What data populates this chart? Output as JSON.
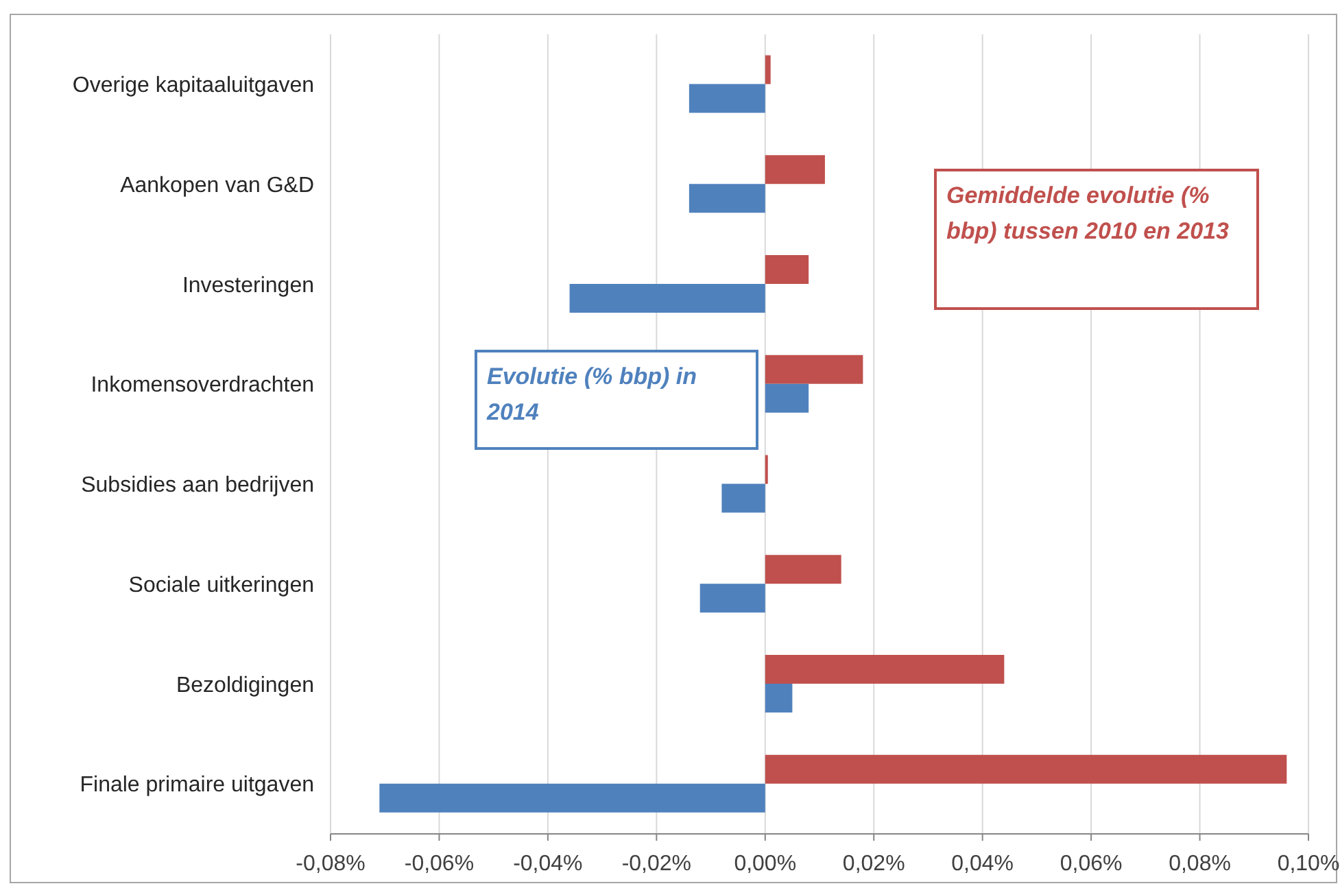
{
  "chart_data": {
    "type": "bar",
    "orientation": "horizontal",
    "categories": [
      "Overige kapitaaluitgaven",
      "Aankopen van G&D",
      "Investeringen",
      "Inkomensoverdrachten",
      "Subsidies aan bedrijven",
      "Sociale uitkeringen",
      "Bezoldigingen",
      "Finale primaire uitgaven"
    ],
    "series": [
      {
        "name": "Gemiddelde evolutie (% bbp) tussen 2010 en 2013",
        "color": "#c0504d",
        "values": [
          0.001,
          0.011,
          0.008,
          0.018,
          0.0005,
          0.014,
          0.044,
          0.096
        ]
      },
      {
        "name": "Evolutie (% bbp) in 2014",
        "color": "#4f81bd",
        "values": [
          -0.014,
          -0.014,
          -0.036,
          0.008,
          -0.008,
          -0.012,
          0.005,
          -0.071
        ]
      }
    ],
    "xlim": [
      -0.08,
      0.1
    ],
    "xticks": [
      {
        "value": -0.08,
        "label": "-0,08%"
      },
      {
        "value": -0.06,
        "label": "-0,06%"
      },
      {
        "value": -0.04,
        "label": "-0,04%"
      },
      {
        "value": -0.02,
        "label": "-0,02%"
      },
      {
        "value": 0,
        "label": "0,00%"
      },
      {
        "value": 0.02,
        "label": "0,02%"
      },
      {
        "value": 0.04,
        "label": "0,04%"
      },
      {
        "value": 0.06,
        "label": "0,06%"
      },
      {
        "value": 0.08,
        "label": "0,08%"
      },
      {
        "value": 0.1,
        "label": "0,10%"
      }
    ],
    "grid": "x"
  }
}
